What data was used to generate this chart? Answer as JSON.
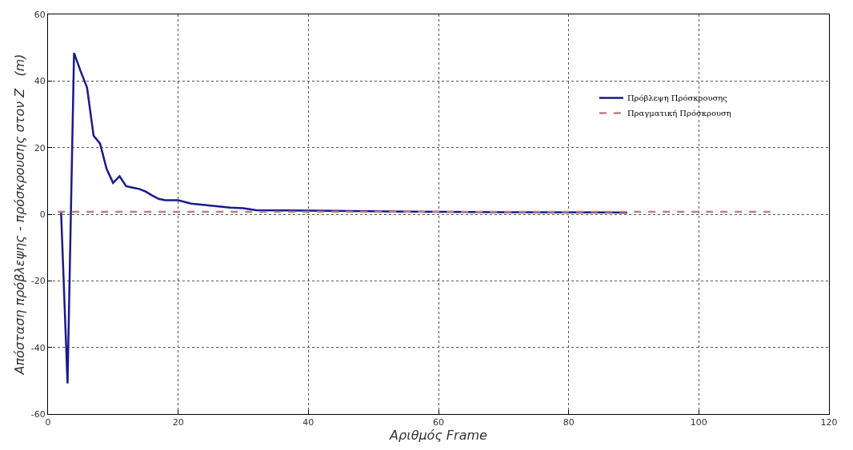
{
  "chart_data": {
    "type": "line",
    "xlabel": "Αριθμός Frame",
    "ylabel": "Απόσταση πρόβλεψης - πρόσκρουσης στον Z   (m)",
    "xlim": [
      0,
      120
    ],
    "xticks": [
      0,
      20,
      40,
      60,
      80,
      100,
      120
    ],
    "ylim": [
      -60,
      60
    ],
    "yticks": [
      -60,
      -40,
      -20,
      0,
      20,
      40,
      60
    ],
    "grid": true,
    "legend": "top right",
    "marker": "none",
    "series": [
      {
        "name": "Πρόβλεψη Πρόσκρουσης",
        "color": "#1a1a8c",
        "line_style": "solid",
        "x": [
          2,
          3,
          4,
          5,
          6,
          7,
          8,
          9,
          10,
          11,
          12,
          13,
          14,
          15,
          16,
          17,
          18,
          20,
          22,
          25,
          28,
          30,
          32,
          40,
          55,
          70,
          89
        ],
        "values": [
          1,
          -50.8,
          48.4,
          43,
          38,
          23.6,
          21.2,
          13.6,
          9.4,
          11.4,
          8.4,
          8,
          7.6,
          6.8,
          5.6,
          4.6,
          4.2,
          4.2,
          3.2,
          2.6,
          2,
          1.8,
          1.2,
          1.1,
          0.8,
          0.6,
          0.5
        ]
      },
      {
        "name": "Πραγματική Πρόσκρουση",
        "color": "#c08080",
        "line_style": "dashed",
        "x": [
          1.5,
          111
        ],
        "values": [
          0.7,
          0.7
        ]
      }
    ]
  }
}
